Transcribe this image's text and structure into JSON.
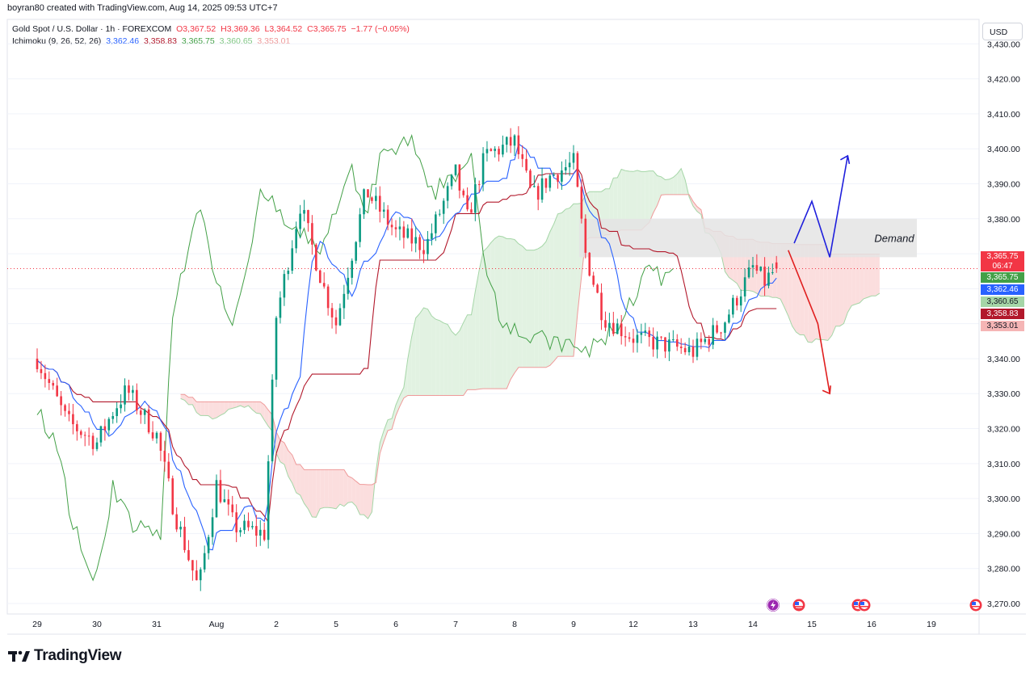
{
  "header": {
    "credit": "boyran80 created with TradingView.com, Aug 14, 2025 09:53 UTC+7"
  },
  "legend": {
    "symbol": "Gold Spot / U.S. Dollar · 1h · FOREXCOM",
    "open": "O3,367.52",
    "high": "H3,369.36",
    "low": "L3,364.52",
    "close": "C3,365.75",
    "change": "−1.77 (−0.05%)",
    "indicator": "Ichimoku (9, 26, 52, 26)",
    "ichimoku_values": [
      "3,362.46",
      "3,358.83",
      "3,365.75",
      "3,360.65",
      "3,353.01"
    ]
  },
  "currency": "USD",
  "annotation": "Demand",
  "price_tags": {
    "last": "3,365.75",
    "countdown": "06:47",
    "chikou": "3,365.75",
    "tenkan": "3,362.46",
    "span_a": "3,360.65",
    "kijun": "3,358.83",
    "span_b": "3,353.01"
  },
  "colors": {
    "up": "#089981",
    "down": "#f23645",
    "tenkan": "#2962ff",
    "kijun": "#b2182b",
    "chikou": "#43a047",
    "cloud_bull": "#e2f2e2",
    "cloud_bear": "#fbdede",
    "arrow_up": "#1f1fdc",
    "arrow_down": "#e01e1e"
  },
  "brand": "TradingView",
  "chart_data": {
    "type": "line",
    "title": "Gold Spot / U.S. Dollar · 1h · FOREXCOM",
    "x": [
      "29",
      "30",
      "31",
      "Aug",
      "2",
      "5",
      "6",
      "7",
      "8",
      "9",
      "12",
      "13",
      "14",
      "15",
      "16",
      "19"
    ],
    "ylim": [
      3267,
      3437
    ],
    "y_ticks": [
      "3,430.00",
      "3,420.00",
      "3,410.00",
      "3,400.00",
      "3,390.00",
      "3,380.00",
      "3,370.00",
      "3,360.00",
      "3,350.00",
      "3,340.00",
      "3,330.00",
      "3,320.00",
      "3,310.00",
      "3,300.00",
      "3,290.00",
      "3,280.00",
      "3,270.00"
    ],
    "grid": true,
    "series": [
      {
        "name": "Gold Spot / U.S. Dollar",
        "x": [
          0,
          0.5,
          1,
          1.3,
          1.5,
          2,
          2.3,
          2.7,
          3,
          3.3,
          3.8,
          4,
          4.4,
          4.8,
          5,
          5.5,
          6,
          6.5,
          7,
          7.2,
          7.5,
          8,
          8.3,
          8.6,
          9,
          9.2,
          9.5,
          10,
          10.5,
          11,
          11.5,
          12,
          12.2,
          12.4
        ],
        "values": [
          3340,
          3322,
          3316,
          3326,
          3331,
          3318,
          3296,
          3274,
          3304,
          3292,
          3290,
          3352,
          3384,
          3360,
          3350,
          3388,
          3376,
          3372,
          3393,
          3380,
          3398,
          3402,
          3386,
          3392,
          3396,
          3370,
          3352,
          3346,
          3344,
          3342,
          3350,
          3366,
          3362,
          3365.75
        ]
      },
      {
        "name": "Tenkan",
        "value": 3362.46
      },
      {
        "name": "Kijun",
        "value": 3358.83
      },
      {
        "name": "Chikou",
        "value": 3365.75
      },
      {
        "name": "Span A",
        "value": 3360.65
      },
      {
        "name": "Span B",
        "value": 3353.01
      }
    ],
    "zones": [
      {
        "label": "Demand",
        "from": 3369,
        "to": 3380,
        "x_start": 9.1,
        "x_end": 14.1
      }
    ],
    "projection": {
      "up": {
        "x": [
          12.7,
          13.0,
          13.3,
          13.6
        ],
        "values": [
          3373,
          3385,
          3369,
          3398
        ]
      },
      "down": {
        "x": [
          12.6,
          13.1,
          13.3
        ],
        "values": [
          3371,
          3350,
          3330
        ]
      }
    }
  }
}
